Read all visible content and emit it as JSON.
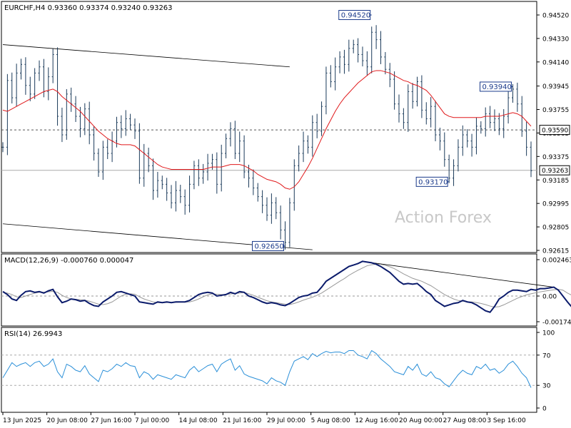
{
  "chart_data": [
    {
      "type": "line",
      "panel": "price",
      "title": "EURCHF,H4  0.93360 0.93374 0.93240 0.93263",
      "watermark": "Action Forex",
      "ylim": [
        0.92615,
        0.9452
      ],
      "yticks": [
        "0.94520",
        "0.94330",
        "0.94140",
        "0.93945",
        "0.93755",
        "0.93565",
        "0.93375",
        "0.93185",
        "0.92995",
        "0.92805",
        "0.92615"
      ],
      "xticks": [
        "13 Jun 2025",
        "20 Jun 08:00",
        "27 Jun 16:00",
        "7 Jul 00:00",
        "14 Jul 08:00",
        "21 Jul 16:00",
        "29 Jul 00:00",
        "5 Aug 08:00",
        "12 Aug 16:00",
        "20 Aug 00:00",
        "27 Aug 08:00",
        "3 Sep 16:00"
      ],
      "dashed_level": 0.9359,
      "current_price": 0.93263,
      "price_labels": [
        {
          "text": "0.94520",
          "bar": 81,
          "value": 0.9452
        },
        {
          "text": "0.93940",
          "bar": 112,
          "value": 0.9394
        },
        {
          "text": "0.93170",
          "bar": 98,
          "value": 0.9317
        },
        {
          "text": "0.92650",
          "bar": 62,
          "value": 0.9265
        }
      ],
      "right_labels": [
        {
          "text": "0.93590",
          "value": 0.9359
        },
        {
          "text": "0.93263",
          "value": 0.93263
        }
      ],
      "trendlines": [
        {
          "from": [
            0,
            0.9428
          ],
          "to": [
            63,
            0.941
          ]
        },
        {
          "from": [
            0,
            0.9283
          ],
          "to": [
            68,
            0.9262
          ]
        }
      ],
      "series": [
        {
          "values": [
            0.9345,
            0.9399,
            0.9385,
            0.9405,
            0.9412,
            0.9395,
            0.9388,
            0.9405,
            0.941,
            0.939,
            0.9402,
            0.942,
            0.937,
            0.9355,
            0.9388,
            0.938,
            0.937,
            0.936,
            0.9376,
            0.9355,
            0.934,
            0.9325,
            0.9345,
            0.934,
            0.935,
            0.9365,
            0.936,
            0.9368,
            0.9363,
            0.9358,
            0.932,
            0.934,
            0.933,
            0.931,
            0.9318,
            0.9315,
            0.9308,
            0.93,
            0.931,
            0.9305,
            0.9298,
            0.9315,
            0.933,
            0.932,
            0.9325,
            0.9332,
            0.9335,
            0.9315,
            0.934,
            0.9352,
            0.936,
            0.934,
            0.935,
            0.9325,
            0.932,
            0.9312,
            0.9305,
            0.9298,
            0.929,
            0.93,
            0.9292,
            0.9278,
            0.9268,
            0.93,
            0.933,
            0.934,
            0.935,
            0.9345,
            0.9365,
            0.9358,
            0.9378,
            0.9405,
            0.9398,
            0.941,
            0.9418,
            0.9412,
            0.9425,
            0.9428,
            0.942,
            0.9415,
            0.941,
            0.9438,
            0.9432,
            0.9418,
            0.9408,
            0.94,
            0.938,
            0.9372,
            0.9365,
            0.939,
            0.9382,
            0.9398,
            0.9375,
            0.9368,
            0.9378,
            0.9355,
            0.935,
            0.9335,
            0.932,
            0.933,
            0.9345,
            0.9355,
            0.935,
            0.9345,
            0.9362,
            0.936,
            0.9372,
            0.9365,
            0.9368,
            0.936,
            0.937,
            0.9385,
            0.9392,
            0.938,
            0.9358,
            0.9345,
            0.9326
          ]
        },
        {
          "values": [
            0.9375,
            0.9374,
            0.9376,
            0.9378,
            0.938,
            0.9382,
            0.9384,
            0.9386,
            0.9388,
            0.939,
            0.9391,
            0.9392,
            0.939,
            0.9386,
            0.9383,
            0.938,
            0.9377,
            0.9374,
            0.937,
            0.9366,
            0.9362,
            0.9358,
            0.9355,
            0.9352,
            0.935,
            0.9348,
            0.9347,
            0.9347,
            0.9347,
            0.9346,
            0.9343,
            0.934,
            0.9337,
            0.9334,
            0.9331,
            0.9329,
            0.9328,
            0.9327,
            0.9327,
            0.9327,
            0.9327,
            0.9327,
            0.9327,
            0.9327,
            0.9327,
            0.9328,
            0.9329,
            0.9329,
            0.9329,
            0.933,
            0.9331,
            0.9331,
            0.9331,
            0.933,
            0.9328,
            0.9326,
            0.9323,
            0.9321,
            0.9319,
            0.9318,
            0.9317,
            0.9315,
            0.9312,
            0.9311,
            0.9313,
            0.9317,
            0.9323,
            0.9329,
            0.9336,
            0.9344,
            0.9352,
            0.936,
            0.9367,
            0.9374,
            0.938,
            0.9385,
            0.9389,
            0.9393,
            0.9397,
            0.94,
            0.9403,
            0.9406,
            0.9407,
            0.9407,
            0.9406,
            0.9405,
            0.9403,
            0.9401,
            0.9399,
            0.9398,
            0.9396,
            0.9395,
            0.9393,
            0.9391,
            0.9387,
            0.9382,
            0.9377,
            0.9372,
            0.937,
            0.9369,
            0.9369,
            0.9369,
            0.9369,
            0.9369,
            0.9369,
            0.9369,
            0.937,
            0.937,
            0.937,
            0.937,
            0.9371,
            0.9372,
            0.9373,
            0.9372,
            0.937,
            0.9366,
            0.9362
          ]
        }
      ]
    },
    {
      "type": "line",
      "panel": "macd",
      "title": "MACD(12,26,9) -0.000760 0.000047",
      "ylim": [
        -0.00174,
        0.002463
      ],
      "yticks": [
        "0.002463",
        "0.00",
        "-0.00174"
      ],
      "zero_label": "0.00",
      "trendline": {
        "from": [
          79,
          0.00234
        ],
        "to": [
          121,
          0.0006
        ]
      },
      "series": [
        {
          "values": [
            0.0003,
            0.0001,
            -0.0002,
            -0.0003,
            5e-05,
            0.0003,
            0.00035,
            0.00025,
            0.0003,
            0.0002,
            0.00035,
            0.00045,
            -5e-05,
            -0.00045,
            -0.00035,
            -0.0002,
            -0.00025,
            -0.00035,
            -0.0003,
            -0.0005,
            -0.00065,
            -0.0007,
            -0.0004,
            -0.0002,
            0.0,
            0.00025,
            0.0003,
            0.0002,
            0.0001,
            0.0,
            -0.0004,
            -0.00045,
            -0.0005,
            -0.00055,
            -0.0004,
            -0.00045,
            -0.0004,
            -0.00045,
            -0.0004,
            -0.0004,
            -0.0004,
            -0.0003,
            -0.0001,
            0.0001,
            0.0002,
            0.00025,
            0.0002,
            0.0,
            5e-05,
            0.0001,
            0.00025,
            0.00015,
            0.0003,
            0.00025,
            0.0,
            -0.0001,
            -0.00025,
            -0.0004,
            -0.0005,
            -0.00045,
            -0.0005,
            -0.0006,
            -0.00065,
            -0.0005,
            -0.0003,
            -0.0001,
            0.0,
            5e-05,
            0.0002,
            0.00025,
            0.0006,
            0.001,
            0.0012,
            0.0014,
            0.0016,
            0.0018,
            0.002,
            0.0021,
            0.0022,
            0.00235,
            0.0023,
            0.00225,
            0.00215,
            0.002,
            0.0018,
            0.0016,
            0.0013,
            0.001,
            0.0008,
            0.00085,
            0.0008,
            0.00085,
            0.0006,
            0.0003,
            0.0001,
            -0.0003,
            -0.0005,
            -0.0007,
            -0.0006,
            -0.0005,
            -0.00045,
            -0.0003,
            -0.0004,
            -0.00045,
            -0.0006,
            -0.0008,
            -0.001,
            -0.0011,
            -0.0007,
            -0.0002,
            0.0,
            0.00025,
            0.0004,
            0.0004,
            0.00035,
            0.0003,
            0.00045,
            0.0004,
            0.0005,
            0.0005,
            0.00055,
            0.0006,
            0.0004,
            0.0,
            -0.0004,
            -0.00076
          ]
        },
        {
          "values": [
            0.00025,
            0.0002,
            0.0001,
            -5e-05,
            -0.0001,
            0.0,
            0.0001,
            0.0002,
            0.00025,
            0.00025,
            0.00028,
            0.00032,
            0.00025,
            5e-05,
            -0.0001,
            -0.0002,
            -0.00022,
            -0.00025,
            -0.00028,
            -0.00035,
            -0.00045,
            -0.00055,
            -0.00058,
            -0.00052,
            -0.0004,
            -0.0002,
            0.0,
            0.00012,
            0.00015,
            0.00012,
            -5e-05,
            -0.0002,
            -0.0003,
            -0.0004,
            -0.00045,
            -0.00045,
            -0.00044,
            -0.00043,
            -0.00043,
            -0.00042,
            -0.00042,
            -0.0004,
            -0.00032,
            -0.0002,
            -5e-05,
            8e-05,
            0.00015,
            0.00012,
            0.0001,
            0.0001,
            0.00014,
            0.00018,
            0.0002,
            0.00024,
            0.00015,
            5e-05,
            -8e-05,
            -0.0002,
            -0.00032,
            -0.0004,
            -0.00045,
            -0.0005,
            -0.00055,
            -0.00058,
            -0.0005,
            -0.0004,
            -0.00028,
            -0.00018,
            -8e-05,
            5e-05,
            0.0002,
            0.0004,
            0.0006,
            0.0008,
            0.001,
            0.00118,
            0.0014,
            0.00158,
            0.00175,
            0.0019,
            0.00205,
            0.00212,
            0.00216,
            0.00214,
            0.00208,
            0.00198,
            0.00185,
            0.00168,
            0.0015,
            0.00135,
            0.0012,
            0.0011,
            0.001,
            0.00085,
            0.0007,
            0.0005,
            0.0003,
            0.0001,
            -5e-05,
            -0.0002,
            -0.0003,
            -0.00035,
            -0.00038,
            -0.0004,
            -0.00044,
            -0.0005,
            -0.00058,
            -0.00068,
            -0.00075,
            -0.00072,
            -0.0006,
            -0.00045,
            -0.0003,
            -0.00015,
            -3e-05,
            8e-05,
            0.00015,
            0.00022,
            0.00028,
            0.00033,
            0.00038,
            0.00042,
            0.00045,
            0.0004,
            0.0002,
            5e-05
          ]
        }
      ]
    },
    {
      "type": "line",
      "panel": "rsi",
      "title": "RSI(14) 26.9943",
      "ylim": [
        0,
        100
      ],
      "yticks": [
        "100",
        "70",
        "30",
        "0"
      ],
      "series": [
        {
          "values": [
            40,
            50,
            60,
            55,
            58,
            60,
            55,
            60,
            62,
            55,
            58,
            65,
            48,
            40,
            58,
            55,
            50,
            48,
            56,
            45,
            40,
            35,
            50,
            48,
            52,
            58,
            55,
            60,
            56,
            55,
            40,
            48,
            45,
            38,
            44,
            42,
            40,
            38,
            44,
            42,
            40,
            50,
            55,
            48,
            52,
            56,
            58,
            48,
            58,
            62,
            65,
            50,
            56,
            45,
            42,
            40,
            38,
            36,
            32,
            40,
            36,
            34,
            30,
            48,
            62,
            65,
            68,
            64,
            72,
            68,
            72,
            75,
            73,
            74,
            74,
            72,
            76,
            76,
            70,
            68,
            65,
            76,
            72,
            65,
            60,
            55,
            48,
            46,
            44,
            55,
            50,
            58,
            45,
            42,
            48,
            40,
            38,
            32,
            28,
            36,
            44,
            50,
            46,
            44,
            55,
            52,
            58,
            50,
            52,
            46,
            50,
            58,
            62,
            55,
            46,
            40,
            27
          ]
        }
      ]
    }
  ]
}
